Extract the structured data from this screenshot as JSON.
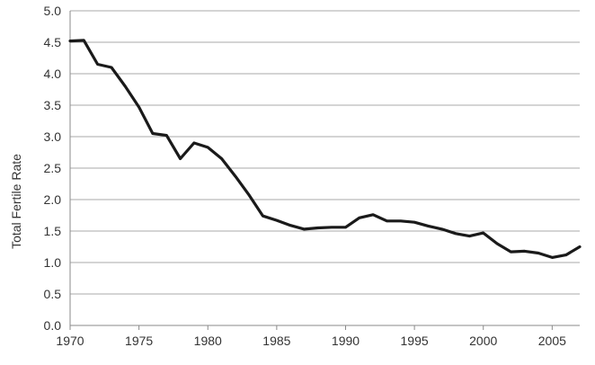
{
  "chart_data": {
    "type": "line",
    "title": "",
    "xlabel": "",
    "ylabel": "Total Fertile Rate",
    "xlim": [
      1970,
      2007
    ],
    "ylim": [
      0,
      5
    ],
    "grid": true,
    "legend": "none",
    "x_ticks": [
      "1970",
      "1975",
      "1980",
      "1985",
      "1990",
      "1995",
      "2000",
      "2005"
    ],
    "y_ticks": [
      "0.0",
      "0.5",
      "1.0",
      "1.5",
      "2.0",
      "2.5",
      "3.0",
      "3.5",
      "4.0",
      "4.5",
      "5.0"
    ],
    "series": [
      {
        "color": "#1a1a1a",
        "x": [
          1970,
          1971,
          1972,
          1973,
          1974,
          1975,
          1976,
          1977,
          1978,
          1979,
          1980,
          1981,
          1982,
          1983,
          1984,
          1985,
          1986,
          1987,
          1988,
          1989,
          1990,
          1991,
          1992,
          1993,
          1994,
          1995,
          1996,
          1997,
          1998,
          1999,
          2000,
          2001,
          2002,
          2003,
          2004,
          2005,
          2006,
          2007
        ],
        "y": [
          4.52,
          4.53,
          4.15,
          4.1,
          3.8,
          3.47,
          3.05,
          3.02,
          2.65,
          2.9,
          2.83,
          2.65,
          2.37,
          2.07,
          1.74,
          1.67,
          1.59,
          1.53,
          1.55,
          1.56,
          1.56,
          1.71,
          1.76,
          1.66,
          1.66,
          1.64,
          1.58,
          1.53,
          1.46,
          1.42,
          1.47,
          1.3,
          1.17,
          1.18,
          1.15,
          1.08,
          1.12,
          1.25
        ]
      }
    ]
  }
}
